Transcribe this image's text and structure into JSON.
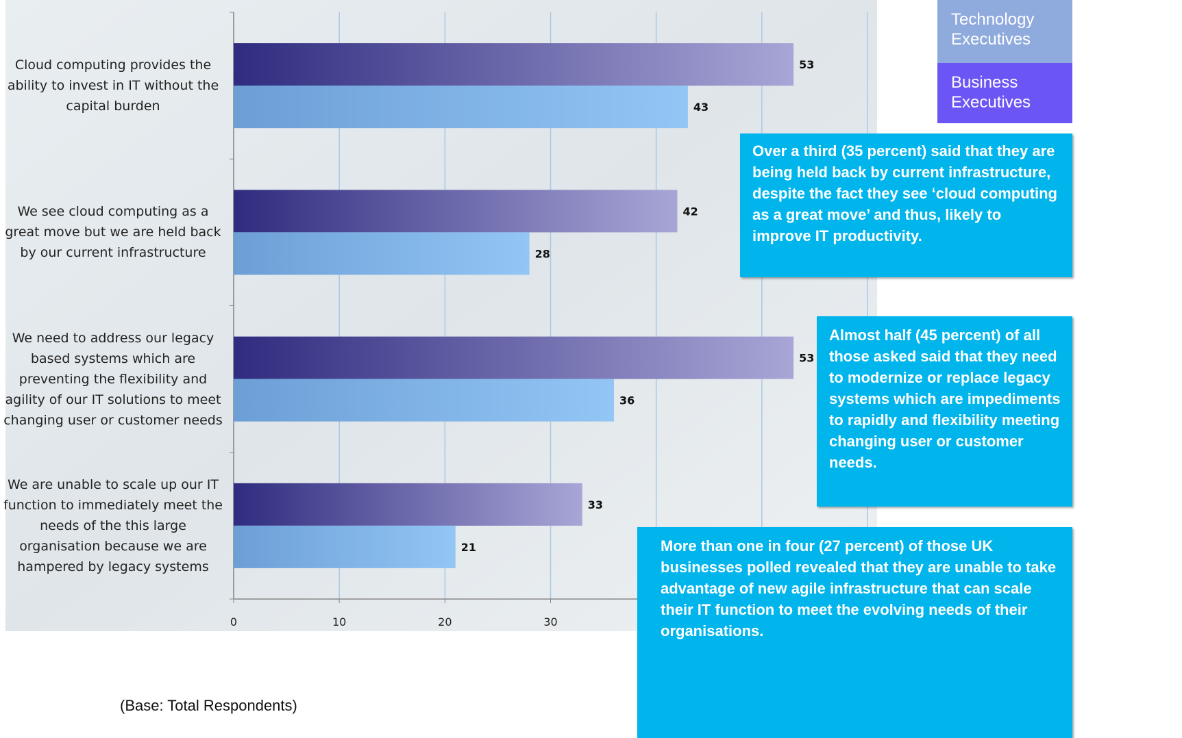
{
  "chart_data": {
    "type": "bar",
    "orientation": "horizontal",
    "categories": [
      "Cloud computing provides the ability to invest in IT without the capital burden",
      "We see cloud computing as a great move but we are held back by our current infrastructure",
      "We need to address our legacy based systems which are preventing the flexibility and agility of our IT solutions to meet changing user or customer needs",
      "We are unable to scale up our IT function to immediately meet the needs of the this large organisation because we are hampered by legacy systems"
    ],
    "series": [
      {
        "name": "Technology Executives",
        "color": "#93c6f5",
        "values": [
          43,
          28,
          36,
          21
        ]
      },
      {
        "name": "Business Executives",
        "color": "#a8a6d6",
        "values": [
          53,
          42,
          53,
          33
        ]
      }
    ],
    "legend_colors": [
      "#8faadc",
      "#6b55f5"
    ],
    "xlim": [
      0,
      60
    ],
    "xticks": [
      0,
      10,
      20,
      30,
      40,
      50,
      60
    ],
    "grid": true,
    "annotations": [
      "Over a third (35 percent) said that they are being held back by current infrastructure, despite the fact they see ‘cloud computing as a great move’ and thus, likely to improve IT productivity.",
      "Almost half (45 percent) of all those asked said that they need to modernize or replace legacy systems which are impediments to rapidly and flexibility meeting changing user or customer needs.",
      "More than one in four (27 percent) of those UK businesses polled revealed that they are unable to take advantage of new agile infrastructure that can scale their IT function to meet the evolving needs of their organisations."
    ],
    "footnote": "(Base: Total Respondents)"
  }
}
